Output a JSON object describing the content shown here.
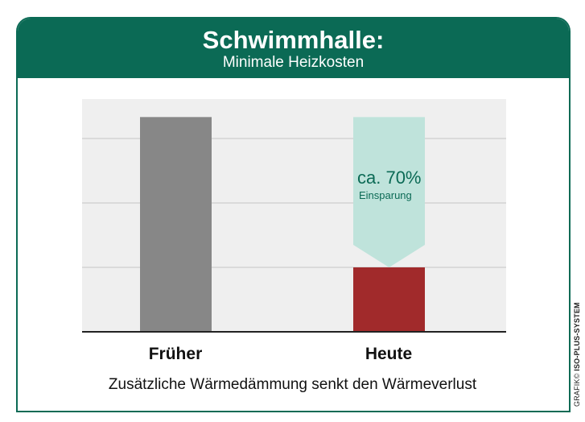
{
  "header": {
    "title": "Schwimmhalle:",
    "subtitle": "Minimale Heizkosten"
  },
  "chart_data": {
    "type": "bar",
    "title": "Schwimmhalle:",
    "subtitle": "Minimale Heizkosten",
    "categories": [
      "Früher",
      "Heute"
    ],
    "values": [
      100,
      30
    ],
    "ylim": [
      0,
      120
    ],
    "grid": true,
    "annotation": {
      "value": "ca. 70%",
      "label": "Einsparung",
      "category": "Heute"
    },
    "colors": {
      "Früher": "#878787",
      "Heute": "#a12a2b",
      "savings": "#bfe3db",
      "text_accent": "#0b6a55"
    }
  },
  "caption": "Zusätzliche Wärmedämmung senkt den Wärmeverlust",
  "credit": {
    "prefix": "GRAFIK©",
    "brand": "ISO-PLUS-SYSTEM"
  }
}
